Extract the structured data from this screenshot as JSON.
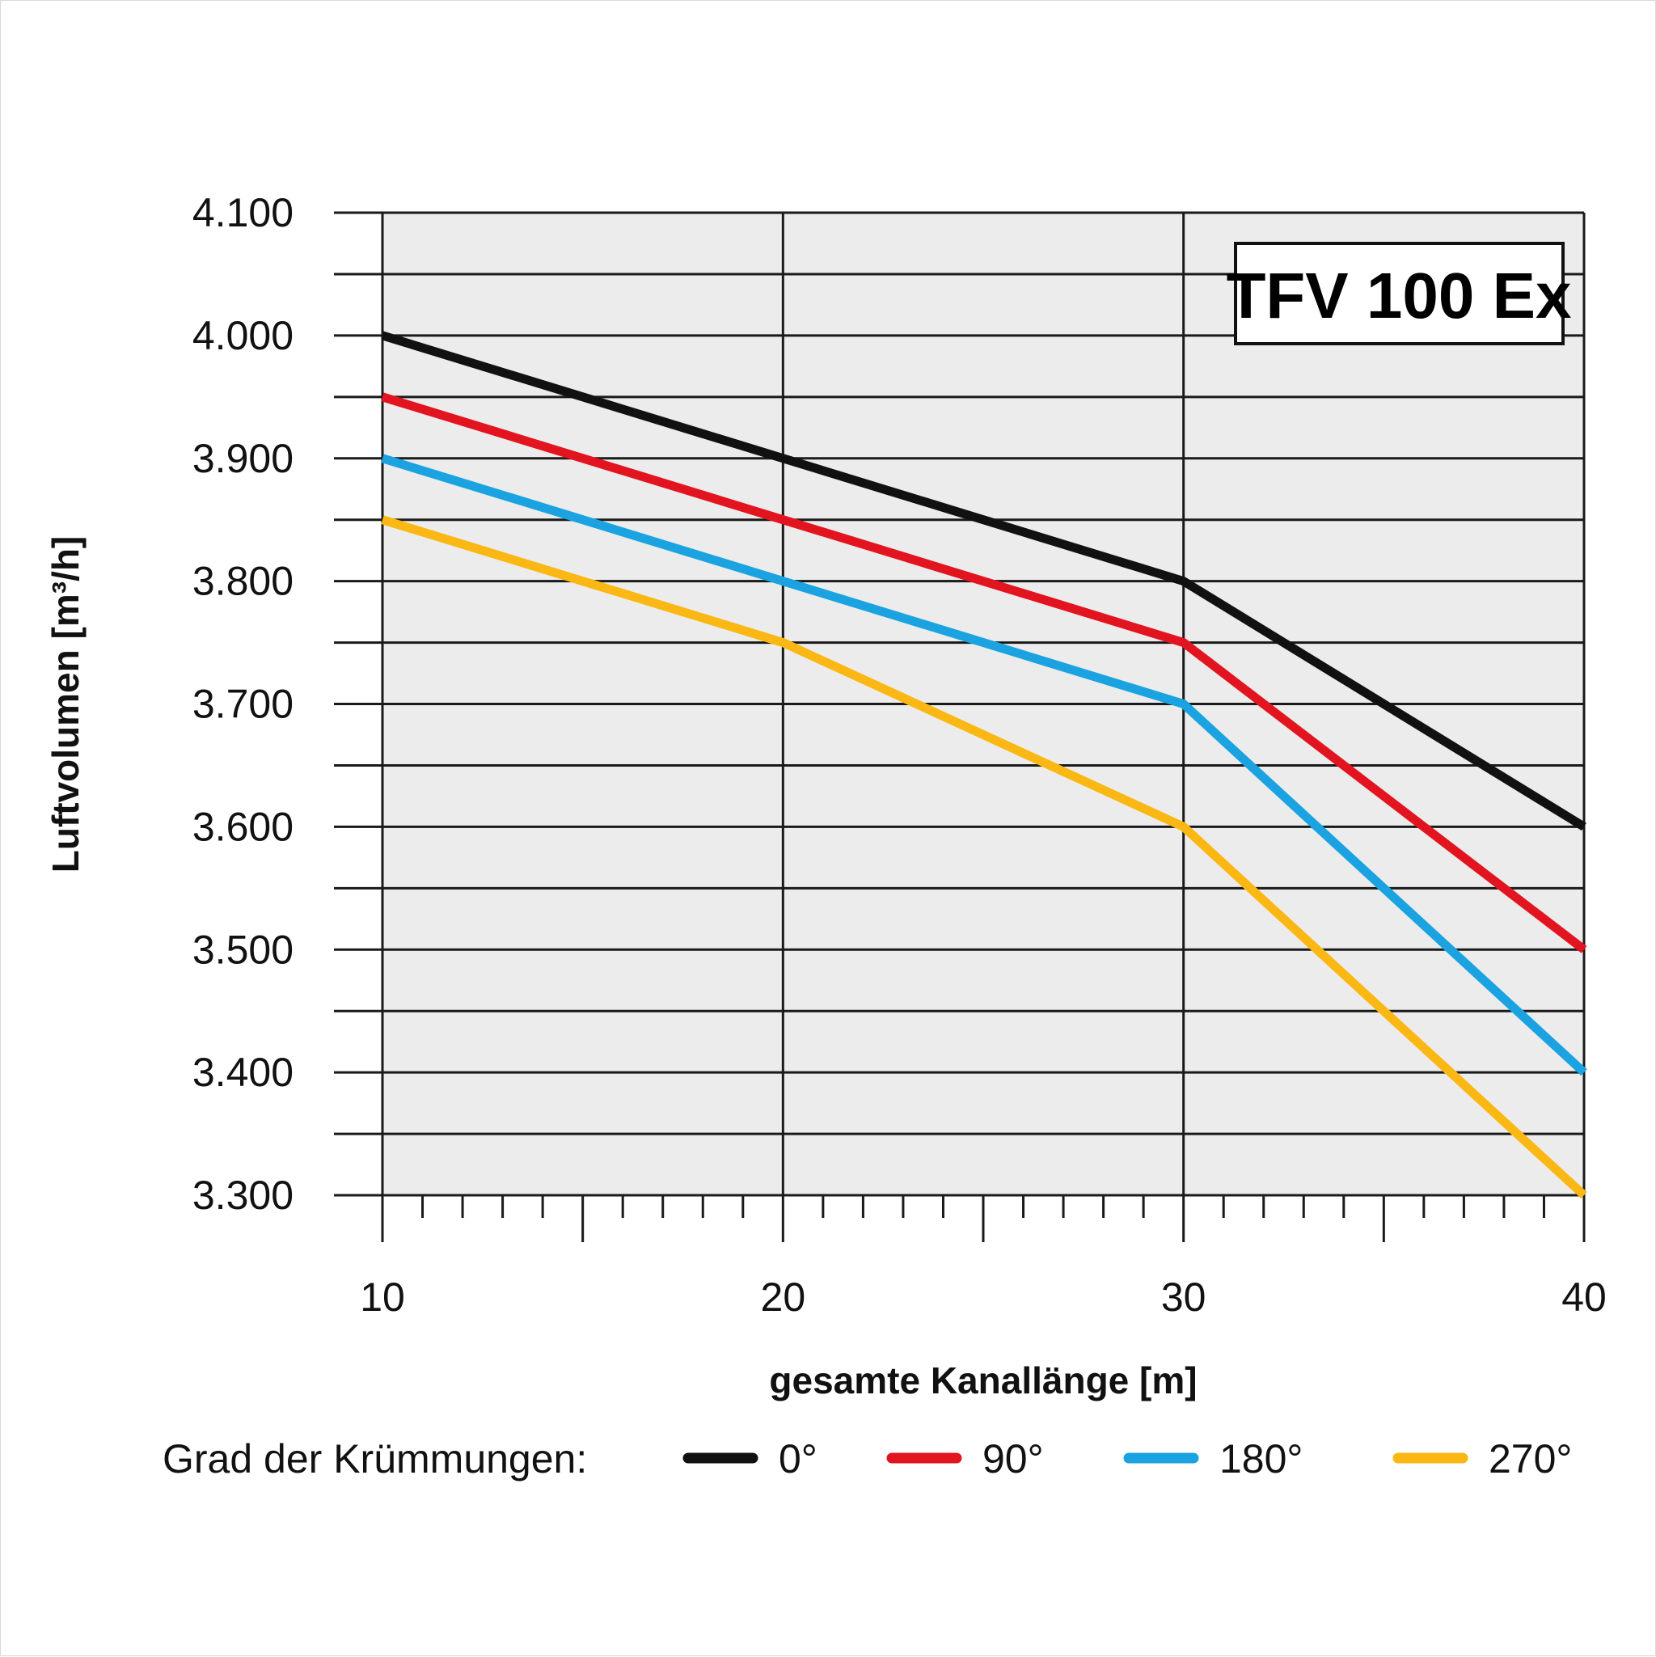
{
  "chart_data": {
    "type": "line",
    "title": "TFV 100 Ex",
    "xlabel": "gesamte Kanallänge [m]",
    "ylabel": "Luftvolumen [m³/h]",
    "xlim": [
      10,
      40
    ],
    "ylim": [
      3300,
      4100
    ],
    "x_ticks": [
      10,
      20,
      30,
      40
    ],
    "x_tick_labels": [
      "10",
      "20",
      "30",
      "40"
    ],
    "y_ticks": [
      3300,
      3400,
      3500,
      3600,
      3700,
      3800,
      3900,
      4000,
      4100
    ],
    "y_tick_labels": [
      "3.300",
      "3.400",
      "3.500",
      "3.600",
      "3.700",
      "3.800",
      "3.900",
      "4.000",
      "4.100"
    ],
    "grid": true,
    "legend_title": "Grad der Krümmungen:",
    "legend_position": "bottom",
    "x": [
      10,
      20,
      30,
      40
    ],
    "series": [
      {
        "name": "0°",
        "color": "#111111",
        "values": [
          4000,
          3900,
          3800,
          3600
        ]
      },
      {
        "name": "90°",
        "color": "#e2141f",
        "values": [
          3950,
          3850,
          3750,
          3500
        ]
      },
      {
        "name": "180°",
        "color": "#1aa3e0",
        "values": [
          3900,
          3800,
          3700,
          3400
        ]
      },
      {
        "name": "270°",
        "color": "#fbb713",
        "values": [
          3850,
          3750,
          3600,
          3300
        ]
      }
    ]
  }
}
